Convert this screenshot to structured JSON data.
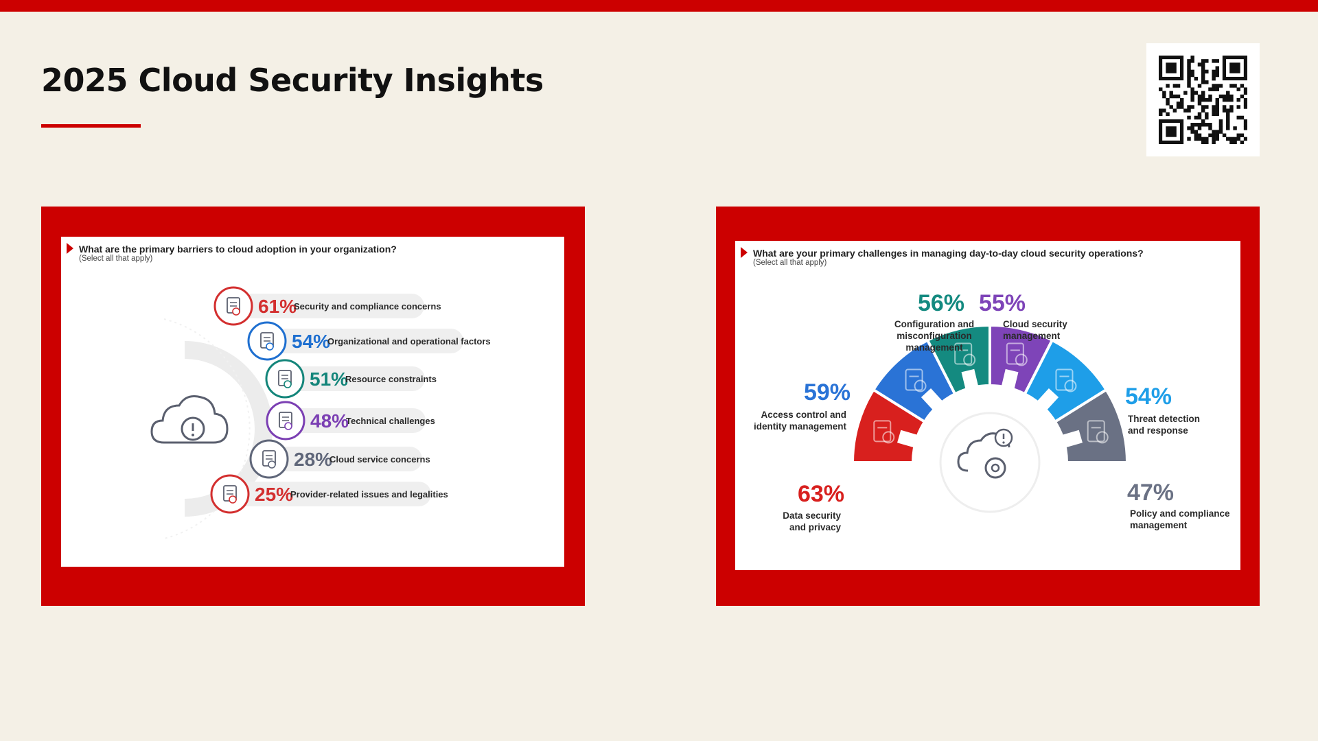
{
  "page": {
    "title": "2025 Cloud Security Insights",
    "accent_color": "#cc0000",
    "background_color": "#f4f0e6",
    "qr_icon": "qr-code-icon"
  },
  "chart_data": [
    {
      "type": "bar",
      "title": "What are the primary barriers to cloud adoption in your organization?",
      "subtitle": "(Select all that apply)",
      "categories": [
        "Security and compliance concerns",
        "Organizational and operational factors",
        "Resource constraints",
        "Technical challenges",
        "Cloud service concerns",
        "Provider-related issues and legalities"
      ],
      "values": [
        61,
        54,
        51,
        48,
        28,
        25
      ],
      "value_labels": [
        "61%",
        "54%",
        "51%",
        "48%",
        "28%",
        "25%"
      ],
      "colors": [
        "#d32f2f",
        "#1e6fd0",
        "#13857a",
        "#7b3fb3",
        "#5f6679",
        "#d32f2f"
      ],
      "icons": [
        "document-seal-icon",
        "user-icon",
        "calculator-icon",
        "gear-warning-icon",
        "cloud-gear-icon",
        "invoice-icon"
      ],
      "center_icon": "cloud-alert-icon"
    },
    {
      "type": "pie",
      "title": "What are your primary challenges in managing day-to-day cloud security operations?",
      "subtitle": "(Select all that apply)",
      "categories": [
        "Data security and privacy",
        "Access control and identity management",
        "Configuration and misconfiguration management",
        "Cloud security management",
        "Threat detection and response",
        "Policy and compliance management"
      ],
      "label_lines": [
        [
          "Data security",
          "and privacy"
        ],
        [
          "Access control and",
          "identity management"
        ],
        [
          "Configuration and",
          "misconfiguration",
          "management"
        ],
        [
          "Cloud security",
          "management"
        ],
        [
          "Threat detection",
          "and response"
        ],
        [
          "Policy and compliance",
          "management"
        ]
      ],
      "values": [
        63,
        59,
        56,
        55,
        54,
        47
      ],
      "value_labels": [
        "63%",
        "59%",
        "56%",
        "55%",
        "54%",
        "47%"
      ],
      "colors": [
        "#d8201e",
        "#2a73d6",
        "#148a80",
        "#7e44b8",
        "#1e9ee8",
        "#6a7184"
      ],
      "icons": [
        "document-shield-icon",
        "id-card-shield-icon",
        "lock-gear-icon",
        "cloud-key-icon",
        "bug-search-icon",
        "policy-scroll-icon"
      ],
      "center_icon": "cloud-gear-alert-icon"
    }
  ]
}
